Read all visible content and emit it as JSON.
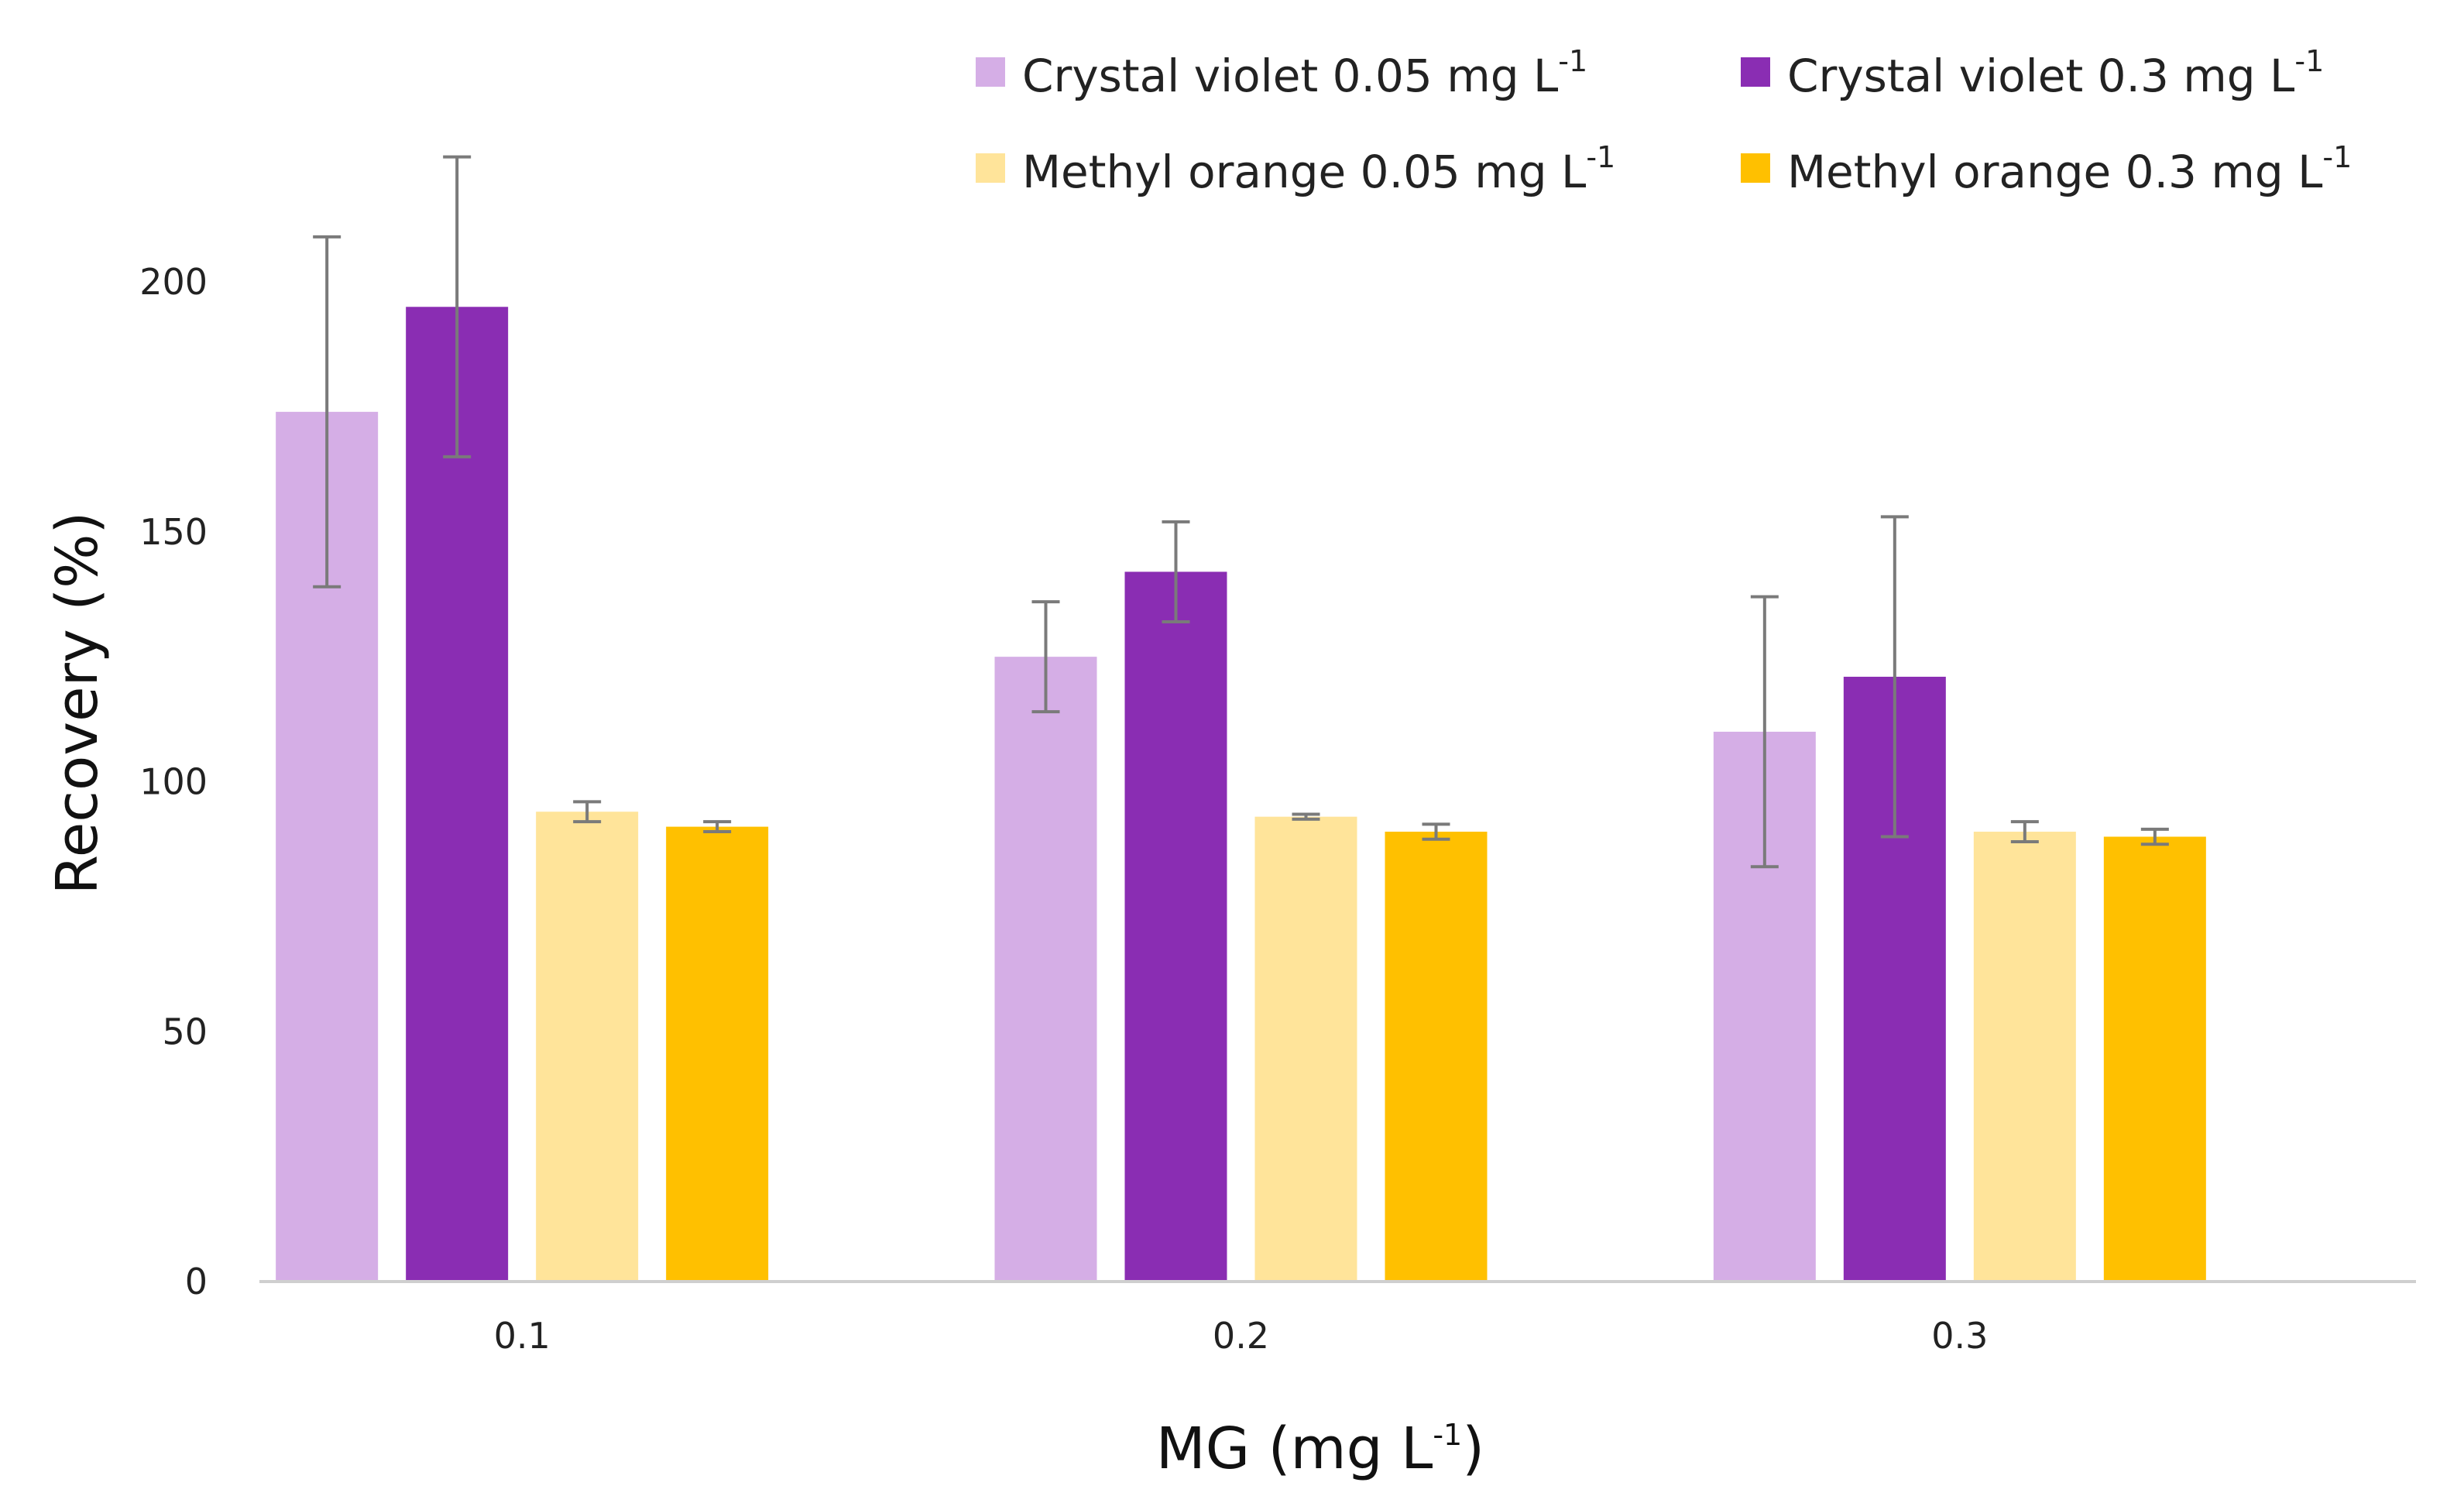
{
  "chart_data": {
    "type": "bar",
    "xlabel": "MG (mg L",
    "xlabel_sup": "-1",
    "xlabel_close": ")",
    "ylabel": "Recovery (%)",
    "categories": [
      "0.1",
      "0.2",
      "0.3"
    ],
    "ylim": [
      0,
      220
    ],
    "yticks": [
      "0",
      "50",
      "100",
      "150",
      "200"
    ],
    "grid": false,
    "legend_position": "top-right",
    "series": [
      {
        "name": "Crystal violet 0.05 mg L",
        "name_sup": "-1",
        "color": "#d5aee6",
        "values": [
          174,
          125,
          110
        ],
        "errors": [
          35,
          11,
          27
        ]
      },
      {
        "name": "Crystal violet 0.3 mg L",
        "name_sup": "-1",
        "color": "#8a2db3",
        "values": [
          195,
          142,
          121
        ],
        "errors": [
          30,
          10,
          32
        ]
      },
      {
        "name": "Methyl orange 0.05 mg L",
        "name_sup": "-1",
        "color": "#ffe49a",
        "values": [
          94,
          93,
          90
        ],
        "errors": [
          2,
          0.5,
          2
        ]
      },
      {
        "name": "Methyl orange 0.3 mg L",
        "name_sup": "-1",
        "color": "#ffc000",
        "values": [
          91,
          90,
          89
        ],
        "errors": [
          1,
          1.5,
          1.5
        ]
      }
    ]
  }
}
